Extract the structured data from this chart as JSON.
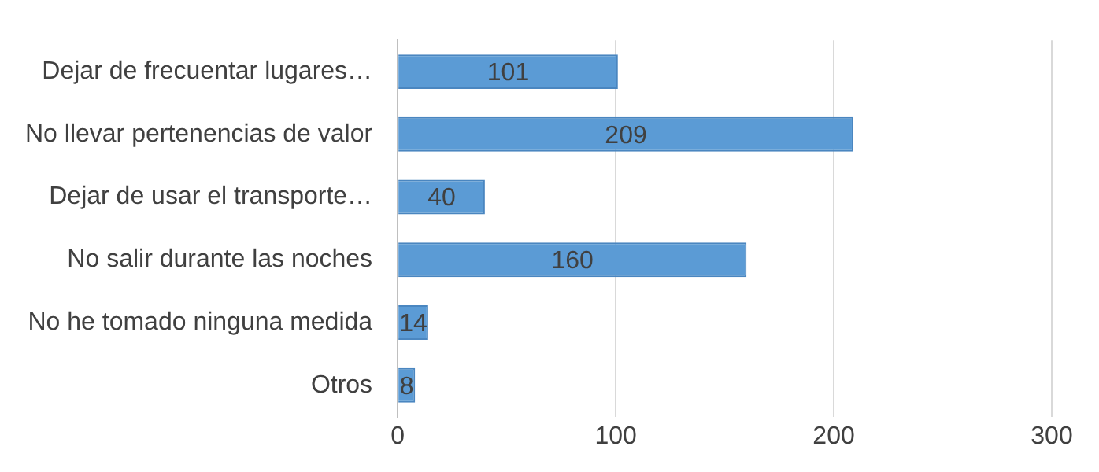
{
  "chart_data": {
    "type": "bar",
    "orientation": "horizontal",
    "categories": [
      "Dejar de frecuentar lugares…",
      "No llevar pertenencias de valor",
      "Dejar de usar el transporte…",
      "No salir durante las noches",
      "No he tomado ninguna medida",
      "Otros"
    ],
    "values": [
      101,
      209,
      40,
      160,
      14,
      8
    ],
    "color": "#5b9bd5",
    "xlim": [
      0,
      300
    ],
    "xticks": [
      0,
      100,
      200,
      300
    ],
    "grid": "x",
    "data_labels": true,
    "legend": false
  }
}
